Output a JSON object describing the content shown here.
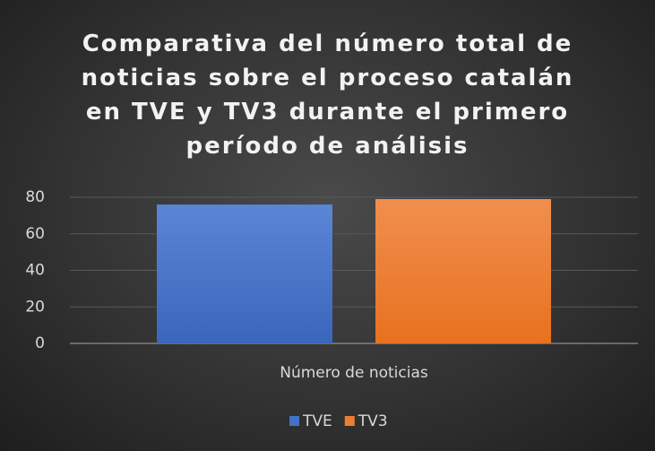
{
  "chart_data": {
    "type": "bar",
    "title": "Comparativa del número total de noticias sobre el proceso catalán en TVE y TV3 durante el primero período de análisis",
    "categories": [
      "Número de noticias"
    ],
    "series": [
      {
        "name": "TVE",
        "color": "#4472c4",
        "values": [
          76
        ]
      },
      {
        "name": "TV3",
        "color": "#ed7d31",
        "values": [
          79
        ]
      }
    ],
    "ylim": [
      0,
      80
    ],
    "yticks": [
      0,
      20,
      40,
      60,
      80
    ],
    "grid": true,
    "legend": "bottom"
  }
}
